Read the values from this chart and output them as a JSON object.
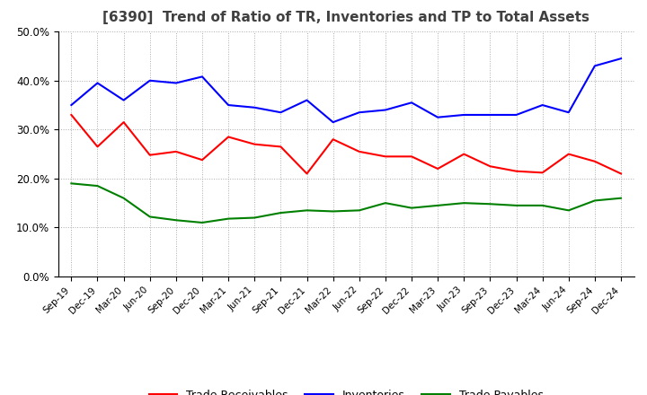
{
  "title": "[6390]  Trend of Ratio of TR, Inventories and TP to Total Assets",
  "x_labels": [
    "Sep-19",
    "Dec-19",
    "Mar-20",
    "Jun-20",
    "Sep-20",
    "Dec-20",
    "Mar-21",
    "Jun-21",
    "Sep-21",
    "Dec-21",
    "Mar-22",
    "Jun-22",
    "Sep-22",
    "Dec-22",
    "Mar-23",
    "Jun-23",
    "Sep-23",
    "Dec-23",
    "Mar-24",
    "Jun-24",
    "Sep-24",
    "Dec-24"
  ],
  "trade_receivables": [
    0.33,
    0.265,
    0.315,
    0.248,
    0.255,
    0.238,
    0.285,
    0.27,
    0.265,
    0.21,
    0.28,
    0.255,
    0.245,
    0.245,
    0.22,
    0.25,
    0.225,
    0.215,
    0.212,
    0.25,
    0.235,
    0.21
  ],
  "inventories": [
    0.35,
    0.395,
    0.36,
    0.4,
    0.395,
    0.408,
    0.35,
    0.345,
    0.335,
    0.36,
    0.315,
    0.335,
    0.34,
    0.355,
    0.325,
    0.33,
    0.33,
    0.33,
    0.35,
    0.335,
    0.43,
    0.445
  ],
  "trade_payables": [
    0.19,
    0.185,
    0.16,
    0.122,
    0.115,
    0.11,
    0.118,
    0.12,
    0.13,
    0.135,
    0.133,
    0.135,
    0.15,
    0.14,
    0.145,
    0.15,
    0.148,
    0.145,
    0.145,
    0.135,
    0.155,
    0.16
  ],
  "line_colors": {
    "trade_receivables": "#ff0000",
    "inventories": "#0000ff",
    "trade_payables": "#008000"
  },
  "ylim": [
    0.0,
    0.5
  ],
  "yticks": [
    0.0,
    0.1,
    0.2,
    0.3,
    0.4,
    0.5
  ],
  "background_color": "#ffffff",
  "grid_color": "#aaaaaa",
  "title_fontsize": 11,
  "title_color": "#404040",
  "legend_labels": [
    "Trade Receivables",
    "Inventories",
    "Trade Payables"
  ]
}
